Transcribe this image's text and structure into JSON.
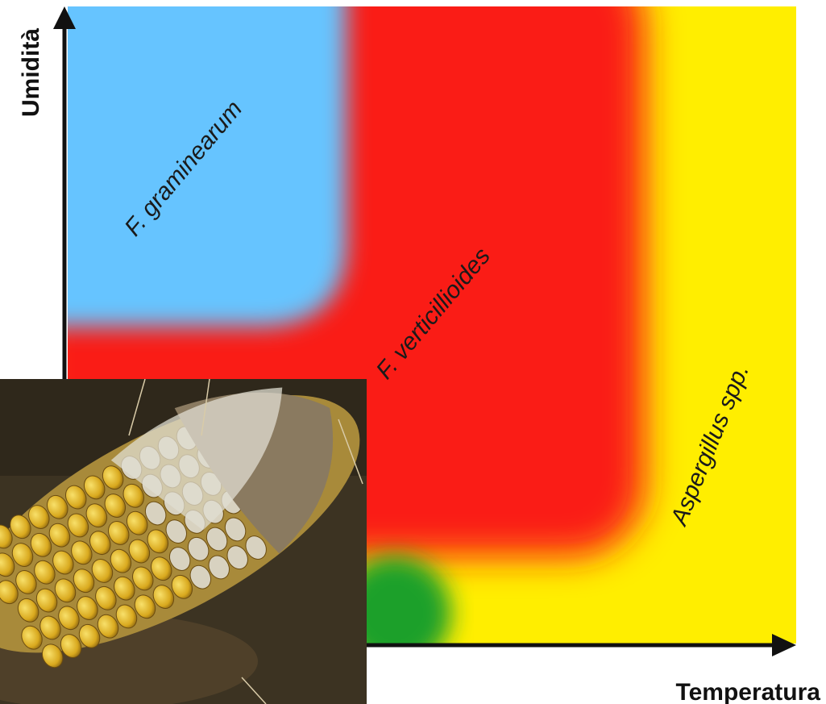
{
  "axes": {
    "y_label": "Umidità",
    "x_label": "Temperatura"
  },
  "regions": [
    {
      "label": "F. graminearum"
    },
    {
      "label": "F. verticillioides"
    },
    {
      "label": "Aspergillus spp."
    }
  ]
}
